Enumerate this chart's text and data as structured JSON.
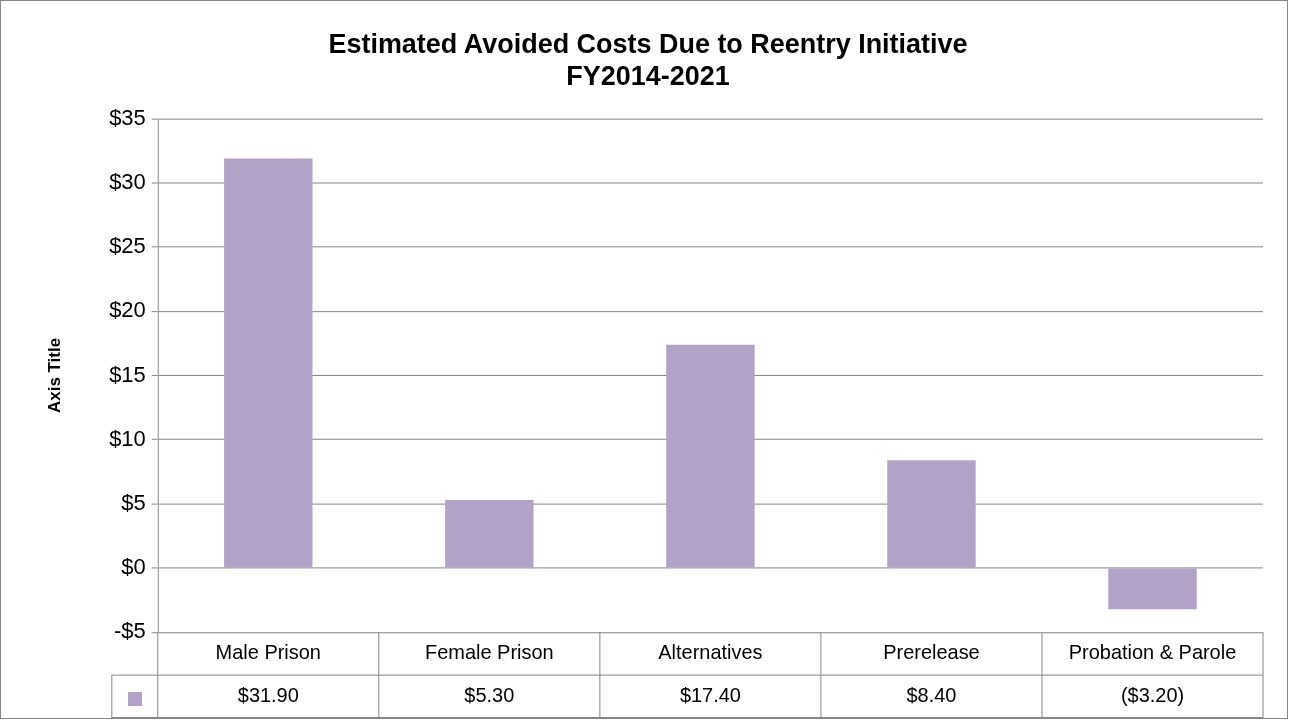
{
  "chart_data": {
    "type": "bar",
    "title": "Estimated Avoided Costs Due to Reentry Initiative\nFY2014-2021",
    "ylabel": "Axis Title",
    "categories": [
      "Male Prison",
      "Female Prison",
      "Alternatives",
      "Prerelease",
      "Probation & Parole"
    ],
    "values": [
      31.9,
      5.3,
      17.4,
      8.4,
      -3.2
    ],
    "value_labels": [
      "$31.90",
      "$5.30",
      "$17.40",
      "$8.40",
      "($3.20)"
    ],
    "color": "#b3a2c7",
    "ylim": [
      -5,
      35
    ],
    "yticks": [
      {
        "value": -5,
        "label": "-$5"
      },
      {
        "value": 0,
        "label": "$0"
      },
      {
        "value": 5,
        "label": "$5"
      },
      {
        "value": 10,
        "label": "$10"
      },
      {
        "value": 15,
        "label": "$15"
      },
      {
        "value": 20,
        "label": "$20"
      },
      {
        "value": 25,
        "label": "$25"
      },
      {
        "value": 30,
        "label": "$30"
      },
      {
        "value": 35,
        "label": "$35"
      }
    ],
    "grid": true
  }
}
